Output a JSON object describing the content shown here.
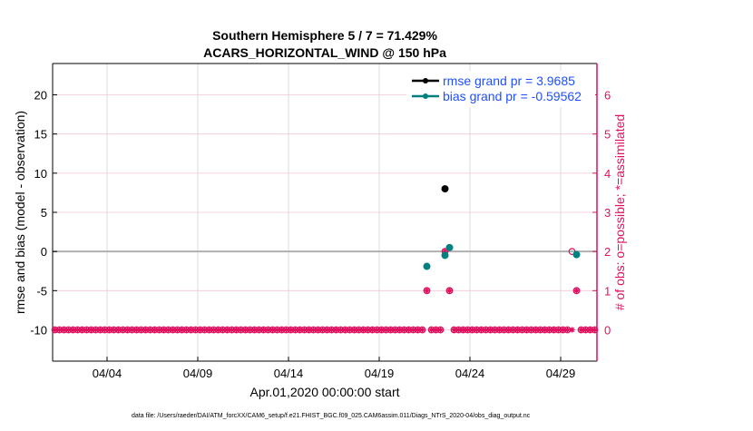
{
  "chart_data": {
    "type": "scatter",
    "title": [
      "Southern Hemisphere 5 / 7 = 71.429%",
      "ACARS_HORIZONTAL_WIND @ 150 hPa"
    ],
    "xlabel": "Apr.01,2020 00:00:00 start",
    "ylabel": "rmse and bias (model - observation)",
    "ylabel_right": "# of obs: o=possible; *=assimilated",
    "footer": "data file: /Users/raeder/DAI/ATM_forcXX/CAM6_setup/f.e21.FHIST_BGC.f09_025.CAM6assim.011/Diags_NTrS_2020-04/obs_diag_output.nc",
    "xlim": [
      "2020-04-01 00:00",
      "2020-05-01 00:00"
    ],
    "xticks": [
      "04/04",
      "04/09",
      "04/14",
      "04/19",
      "04/24",
      "04/29"
    ],
    "ylim": [
      -14,
      24
    ],
    "yticks": [
      -10,
      -5,
      0,
      5,
      10,
      15,
      20
    ],
    "ylim_right": [
      -0.8,
      6.8
    ],
    "yticks_right": [
      0,
      1,
      2,
      3,
      4,
      5,
      6
    ],
    "grid": true,
    "legend_placement": "top-right",
    "colors": {
      "rmse": "#000000",
      "bias": "#008080",
      "obs": "#e0115f",
      "legend_text": "#1f4fff",
      "zero_line": "#b0b0b0"
    },
    "series": [
      {
        "name": "rmse grand pr = 3.9685",
        "points": [
          {
            "x": "2020-04-22 15:00",
            "y": 8.0
          }
        ]
      },
      {
        "name": "bias grand pr = -0.59562",
        "points": [
          {
            "x": "2020-04-21 15:00",
            "y": -1.9
          },
          {
            "x": "2020-04-22 15:00",
            "y": -0.5
          },
          {
            "x": "2020-04-22 21:00",
            "y": 0.5
          },
          {
            "x": "2020-04-29 21:00",
            "y": -0.4
          }
        ]
      }
    ],
    "obs_counts": {
      "bins_start": "2020-04-01 03:00",
      "bin_interval_hours": 6,
      "bins_count": 120,
      "default_possible": 0,
      "default_assimilated": 0,
      "nonzero": [
        {
          "x": "2020-04-21 15:00",
          "possible": 1,
          "assimilated": 1
        },
        {
          "x": "2020-04-22 15:00",
          "possible": 2,
          "assimilated": 2
        },
        {
          "x": "2020-04-22 21:00",
          "possible": 1,
          "assimilated": 1
        },
        {
          "x": "2020-04-29 15:00",
          "possible": 2,
          "assimilated": 0
        },
        {
          "x": "2020-04-29 21:00",
          "possible": 1,
          "assimilated": 1
        }
      ]
    }
  }
}
